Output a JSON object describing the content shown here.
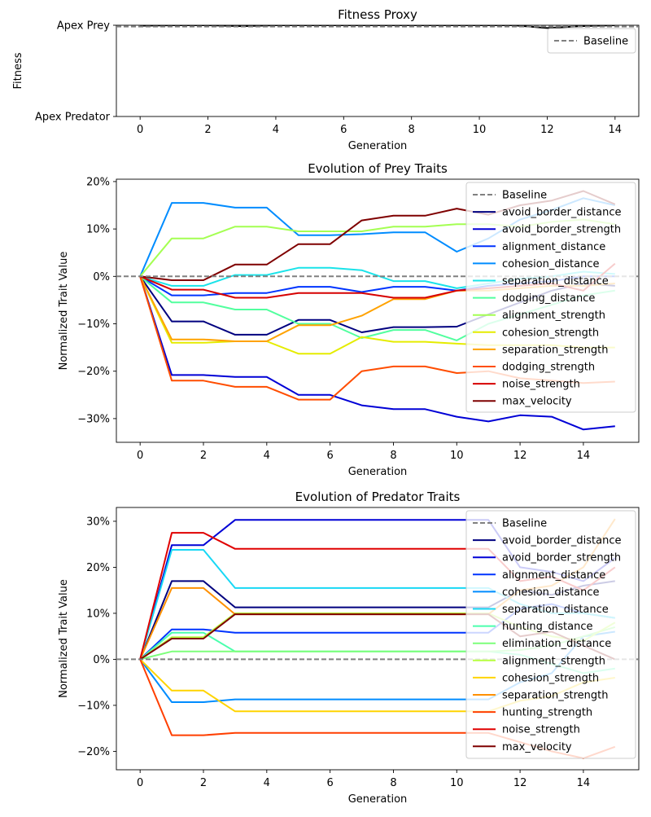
{
  "chart_data": [
    {
      "type": "line",
      "title": "Fitness Proxy",
      "xlabel": "Generation",
      "ylabel": "Fitness",
      "xlim": [
        -0.7,
        14.7
      ],
      "ylim": [
        0,
        1
      ],
      "x_ticks": [
        0,
        2,
        4,
        6,
        8,
        10,
        12,
        14
      ],
      "y_ticks": [
        {
          "value": 1,
          "label": "Apex Prey"
        },
        {
          "value": 0,
          "label": "Apex Predator"
        }
      ],
      "baseline": {
        "name": "Baseline",
        "value": 0.985,
        "color": "#808080"
      },
      "legend_position": "top-right",
      "series": [
        {
          "color": "#000000",
          "x": [
            0,
            1,
            2,
            3,
            4,
            5,
            6,
            7,
            8,
            9,
            10,
            11,
            12,
            13,
            14
          ],
          "y": [
            0.995,
            1.0,
            1.0,
            0.99,
            1.0,
            1.0,
            1.0,
            1.0,
            1.0,
            1.0,
            1.0,
            1.0,
            0.97,
            0.99,
            1.0
          ]
        }
      ]
    },
    {
      "type": "line",
      "title": "Evolution of Prey Traits",
      "xlabel": "Generation",
      "ylabel": "Normalized Trait Value",
      "xlim": [
        -0.75,
        15.75
      ],
      "ylim": [
        -0.35,
        0.205
      ],
      "x_ticks": [
        0,
        2,
        4,
        6,
        8,
        10,
        12,
        14
      ],
      "y_ticks": [
        {
          "value": 0.2,
          "label": "20%"
        },
        {
          "value": 0.1,
          "label": "10%"
        },
        {
          "value": 0,
          "label": "0%"
        },
        {
          "value": -0.1,
          "label": "−10%"
        },
        {
          "value": -0.2,
          "label": "−20%"
        },
        {
          "value": -0.3,
          "label": "−30%"
        }
      ],
      "baseline": {
        "name": "Baseline",
        "value": 0,
        "color": "#808080"
      },
      "legend_position": "top-right",
      "x": [
        0,
        1,
        2,
        3,
        4,
        5,
        6,
        7,
        8,
        9,
        10,
        11,
        12,
        13,
        14,
        15
      ],
      "series": [
        {
          "name": "avoid_border_distance",
          "color": "#00007f",
          "values": [
            0,
            -0.095,
            -0.095,
            -0.123,
            -0.123,
            -0.092,
            -0.092,
            -0.118,
            -0.107,
            -0.107,
            -0.106,
            -0.08,
            -0.055,
            -0.03,
            -0.015,
            -0.02
          ]
        },
        {
          "name": "avoid_border_strength",
          "color": "#0000d6",
          "values": [
            0,
            -0.208,
            -0.208,
            -0.212,
            -0.212,
            -0.25,
            -0.25,
            -0.272,
            -0.28,
            -0.28,
            -0.296,
            -0.306,
            -0.293,
            -0.296,
            -0.323,
            -0.316
          ]
        },
        {
          "name": "alignment_distance",
          "color": "#0034ff",
          "values": [
            0,
            -0.04,
            -0.04,
            -0.035,
            -0.035,
            -0.022,
            -0.022,
            -0.033,
            -0.022,
            -0.022,
            -0.03,
            -0.02,
            -0.015,
            -0.01,
            0.0,
            0.0
          ]
        },
        {
          "name": "cohesion_distance",
          "color": "#008cff",
          "values": [
            0,
            0.155,
            0.155,
            0.145,
            0.145,
            0.087,
            0.087,
            0.089,
            0.093,
            0.093,
            0.052,
            0.08,
            0.12,
            0.14,
            0.165,
            0.15
          ]
        },
        {
          "name": "separation_distance",
          "color": "#1ae3e9",
          "values": [
            0,
            -0.02,
            -0.02,
            0.003,
            0.003,
            0.018,
            0.018,
            0.013,
            -0.01,
            -0.01,
            -0.025,
            -0.015,
            -0.005,
            0.0,
            0.01,
            0.005
          ]
        },
        {
          "name": "dodging_distance",
          "color": "#52ff9e",
          "values": [
            0,
            -0.055,
            -0.055,
            -0.07,
            -0.07,
            -0.1,
            -0.1,
            -0.13,
            -0.113,
            -0.113,
            -0.135,
            -0.1,
            -0.08,
            -0.06,
            -0.04,
            -0.03
          ]
        },
        {
          "name": "alignment_strength",
          "color": "#a4ff52",
          "values": [
            0,
            0.08,
            0.08,
            0.105,
            0.105,
            0.095,
            0.095,
            0.095,
            0.105,
            0.105,
            0.11,
            0.11,
            0.105,
            0.115,
            0.12,
            0.11
          ]
        },
        {
          "name": "cohesion_strength",
          "color": "#e5ec00",
          "values": [
            0,
            -0.14,
            -0.14,
            -0.137,
            -0.137,
            -0.163,
            -0.163,
            -0.128,
            -0.138,
            -0.138,
            -0.142,
            -0.145,
            -0.145,
            -0.145,
            -0.15,
            -0.15
          ]
        },
        {
          "name": "separation_strength",
          "color": "#ffa200",
          "values": [
            0,
            -0.133,
            -0.133,
            -0.137,
            -0.137,
            -0.103,
            -0.103,
            -0.083,
            -0.048,
            -0.048,
            -0.03,
            -0.03,
            -0.025,
            -0.02,
            -0.02,
            -0.015
          ]
        },
        {
          "name": "dodging_strength",
          "color": "#ff4d00",
          "values": [
            0,
            -0.22,
            -0.22,
            -0.233,
            -0.233,
            -0.26,
            -0.26,
            -0.2,
            -0.19,
            -0.19,
            -0.204,
            -0.2,
            -0.215,
            -0.22,
            -0.225,
            -0.222
          ]
        },
        {
          "name": "noise_strength",
          "color": "#d60000",
          "values": [
            0,
            -0.028,
            -0.028,
            -0.045,
            -0.045,
            -0.035,
            -0.035,
            -0.035,
            -0.045,
            -0.045,
            -0.03,
            -0.025,
            -0.02,
            -0.015,
            -0.03,
            0.027
          ]
        },
        {
          "name": "max_velocity",
          "color": "#7f0000",
          "values": [
            0,
            -0.008,
            -0.008,
            0.025,
            0.025,
            0.068,
            0.068,
            0.118,
            0.128,
            0.128,
            0.143,
            0.13,
            0.15,
            0.16,
            0.18,
            0.152
          ]
        }
      ]
    },
    {
      "type": "line",
      "title": "Evolution of Predator Traits",
      "xlabel": "Generation",
      "ylabel": "Normalized Trait Value",
      "xlim": [
        -0.75,
        15.75
      ],
      "ylim": [
        -0.24,
        0.33
      ],
      "x_ticks": [
        0,
        2,
        4,
        6,
        8,
        10,
        12,
        14
      ],
      "y_ticks": [
        {
          "value": 0.3,
          "label": "30%"
        },
        {
          "value": 0.2,
          "label": "20%"
        },
        {
          "value": 0.1,
          "label": "10%"
        },
        {
          "value": 0,
          "label": "0%"
        },
        {
          "value": -0.1,
          "label": "−10%"
        },
        {
          "value": -0.2,
          "label": "−20%"
        }
      ],
      "baseline": {
        "name": "Baseline",
        "value": 0,
        "color": "#808080"
      },
      "legend_position": "top-right",
      "x": [
        0,
        1,
        2,
        3,
        4,
        5,
        6,
        7,
        8,
        9,
        10,
        11,
        12,
        13,
        14,
        15
      ],
      "series": [
        {
          "name": "avoid_border_distance",
          "color": "#00007f",
          "values": [
            0,
            0.17,
            0.17,
            0.113,
            0.113,
            0.113,
            0.113,
            0.113,
            0.113,
            0.113,
            0.113,
            0.113,
            0.15,
            0.14,
            0.16,
            0.17
          ]
        },
        {
          "name": "avoid_border_strength",
          "color": "#0000d6",
          "values": [
            0,
            0.248,
            0.248,
            0.303,
            0.303,
            0.303,
            0.303,
            0.303,
            0.303,
            0.303,
            0.303,
            0.303,
            0.2,
            0.19,
            0.17,
            0.22
          ]
        },
        {
          "name": "alignment_distance",
          "color": "#0034ff",
          "values": [
            0,
            0.065,
            0.065,
            0.058,
            0.058,
            0.058,
            0.058,
            0.058,
            0.058,
            0.058,
            0.058,
            0.058,
            0.11,
            0.12,
            0.1,
            0.09
          ]
        },
        {
          "name": "cohesion_distance",
          "color": "#008cff",
          "values": [
            0,
            -0.093,
            -0.093,
            -0.087,
            -0.087,
            -0.087,
            -0.087,
            -0.087,
            -0.087,
            -0.087,
            -0.087,
            -0.087,
            -0.05,
            -0.03,
            0.05,
            0.06
          ]
        },
        {
          "name": "separation_distance",
          "color": "#18d8f5",
          "values": [
            0,
            0.238,
            0.238,
            0.155,
            0.155,
            0.155,
            0.155,
            0.155,
            0.155,
            0.155,
            0.155,
            0.155,
            0.12,
            0.1,
            0.1,
            0.09
          ]
        },
        {
          "name": "hunting_distance",
          "color": "#4bffad",
          "values": [
            0,
            0.058,
            0.058,
            0.017,
            0.017,
            0.017,
            0.017,
            0.017,
            0.017,
            0.017,
            0.017,
            0.017,
            0.01,
            -0.01,
            -0.03,
            -0.02
          ]
        },
        {
          "name": "elimination_distance",
          "color": "#7dff7a",
          "values": [
            0,
            0.017,
            0.017,
            0.017,
            0.017,
            0.017,
            0.017,
            0.017,
            0.017,
            0.017,
            0.017,
            0.017,
            0.02,
            0.03,
            0.05,
            0.07
          ]
        },
        {
          "name": "alignment_strength",
          "color": "#b7ff40",
          "values": [
            0,
            0.048,
            0.048,
            0.1,
            0.1,
            0.1,
            0.1,
            0.1,
            0.1,
            0.1,
            0.1,
            0.1,
            0.07,
            0.05,
            0.04,
            0.08
          ]
        },
        {
          "name": "cohesion_strength",
          "color": "#ffd400",
          "values": [
            0,
            -0.068,
            -0.068,
            -0.113,
            -0.113,
            -0.113,
            -0.113,
            -0.113,
            -0.113,
            -0.113,
            -0.113,
            -0.113,
            -0.09,
            -0.08,
            -0.05,
            -0.04
          ]
        },
        {
          "name": "separation_strength",
          "color": "#ff9000",
          "values": [
            0,
            0.155,
            0.155,
            0.098,
            0.098,
            0.098,
            0.098,
            0.098,
            0.098,
            0.098,
            0.098,
            0.098,
            0.15,
            0.16,
            0.2,
            0.305
          ]
        },
        {
          "name": "hunting_strength",
          "color": "#ff3f00",
          "values": [
            0,
            -0.165,
            -0.165,
            -0.16,
            -0.16,
            -0.16,
            -0.16,
            -0.16,
            -0.16,
            -0.16,
            -0.16,
            -0.16,
            -0.18,
            -0.2,
            -0.215,
            -0.19
          ]
        },
        {
          "name": "noise_strength",
          "color": "#e00000",
          "values": [
            0,
            0.275,
            0.275,
            0.24,
            0.24,
            0.24,
            0.24,
            0.24,
            0.24,
            0.24,
            0.24,
            0.24,
            0.17,
            0.18,
            0.15,
            0.2
          ]
        },
        {
          "name": "max_velocity",
          "color": "#7f0000",
          "values": [
            0,
            0.045,
            0.045,
            0.098,
            0.098,
            0.098,
            0.098,
            0.098,
            0.098,
            0.098,
            0.098,
            0.098,
            0.05,
            0.06,
            0.03,
            0.0
          ]
        }
      ]
    }
  ]
}
